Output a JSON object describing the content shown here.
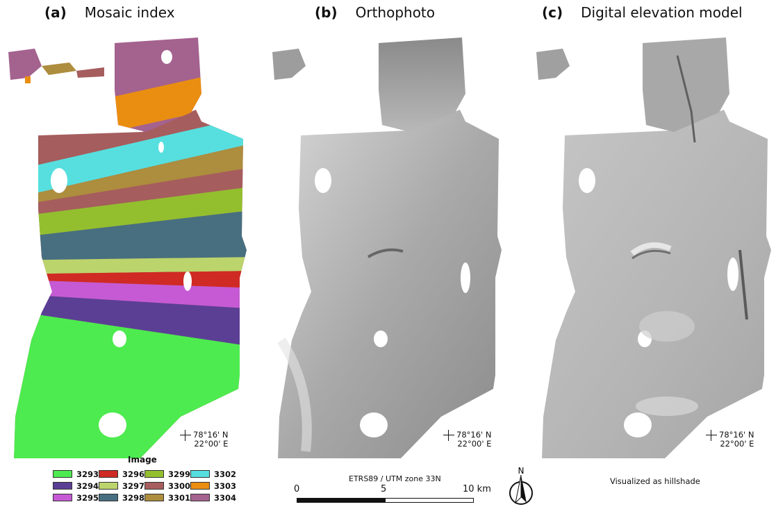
{
  "panels": [
    {
      "letter": "(a)",
      "title": "Mosaic index"
    },
    {
      "letter": "(b)",
      "title": "Orthophoto"
    },
    {
      "letter": "(c)",
      "title": "Digital elevation model"
    }
  ],
  "coordinate": {
    "lat": "78°16' N",
    "lon": "22°00' E"
  },
  "legend": {
    "title": "Image",
    "items": [
      {
        "label": "3293",
        "color": "#4deb4f"
      },
      {
        "label": "3294",
        "color": "#5b3f95"
      },
      {
        "label": "3295",
        "color": "#c65ad4"
      },
      {
        "label": "3296",
        "color": "#cf2a24"
      },
      {
        "label": "3297",
        "color": "#bcd46c"
      },
      {
        "label": "3298",
        "color": "#476f80"
      },
      {
        "label": "3299",
        "color": "#93bf2f"
      },
      {
        "label": "3300",
        "color": "#a65d5d"
      },
      {
        "label": "3301",
        "color": "#ad8d3e"
      },
      {
        "label": "3302",
        "color": "#57dfdf"
      },
      {
        "label": "3303",
        "color": "#ea8e12"
      },
      {
        "label": "3304",
        "color": "#a4628f"
      }
    ]
  },
  "scalebar": {
    "crs": "ETRS89 / UTM zone 33N",
    "start": "0",
    "mid": "5",
    "end": "10 km"
  },
  "north_arrow": {
    "label": "N"
  },
  "hillshade_note": "Visualized as hillshade"
}
